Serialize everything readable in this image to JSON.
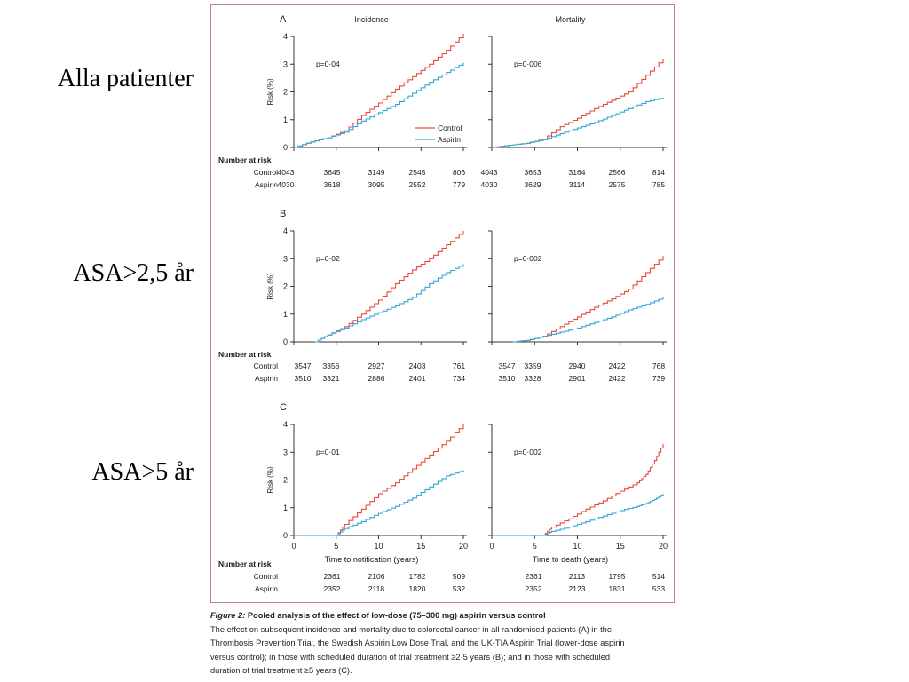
{
  "row_labels": [
    "Alla patienter",
    "ASA>2,5 år",
    "ASA>5 år"
  ],
  "caption": {
    "figure_label": "Figure 2:",
    "title": " Pooled analysis of the effect of low-dose (75–300 mg) aspirin versus control",
    "lines": [
      "The effect on subsequent incidence and mortality due to colorectal cancer in all randomised patients (A) in the",
      "Thrombosis Prevention Trial, the Swedish Aspirin Low Dose Trial, and the UK-TIA Aspirin Trial (lower-dose aspirin",
      "versus control); in those with scheduled duration of trial treatment ≥2·5 years (B); and in those with scheduled",
      "duration of trial treatment ≥5 years (C)."
    ]
  },
  "colors": {
    "control": "#e8493c",
    "aspirin": "#2fa6d6",
    "axis": "#333333",
    "frame": "#c97a8f"
  },
  "chart_data": [
    {
      "panel": "A",
      "type": "line",
      "column_title": "Incidence",
      "ylabel": "Risk (%)",
      "ylim": [
        0,
        4
      ],
      "yticks": [
        "0",
        "1",
        "2",
        "3",
        "4"
      ],
      "xlim": [
        0,
        20
      ],
      "pvalue": "p=0·04",
      "legend": [
        "Control",
        "Aspirin"
      ],
      "series": [
        {
          "name": "Control",
          "x": [
            0,
            2,
            4,
            6,
            8,
            10,
            12,
            14,
            16,
            18,
            20
          ],
          "y": [
            0,
            0.2,
            0.35,
            0.6,
            1.15,
            1.6,
            2.1,
            2.55,
            3.0,
            3.5,
            4.1
          ]
        },
        {
          "name": "Aspirin",
          "x": [
            0,
            2,
            4,
            6,
            8,
            10,
            12,
            14,
            16,
            18,
            20
          ],
          "y": [
            0,
            0.2,
            0.35,
            0.55,
            0.95,
            1.25,
            1.55,
            1.95,
            2.35,
            2.7,
            3.05
          ]
        }
      ],
      "risk_table": {
        "header": "Number at risk",
        "rows": [
          {
            "label": "Control",
            "values": [
              "4043",
              "3645",
              "3149",
              "2545",
              "806"
            ]
          },
          {
            "label": "Aspirin",
            "values": [
              "4030",
              "3618",
              "3095",
              "2552",
              "779"
            ]
          }
        ]
      }
    },
    {
      "panel": "A",
      "type": "line",
      "column_title": "Mortality",
      "ylim": [
        0,
        4
      ],
      "xlim": [
        0,
        20
      ],
      "pvalue": "p=0·006",
      "series": [
        {
          "name": "Control",
          "x": [
            0,
            2,
            4,
            6,
            8,
            10,
            12,
            14,
            16,
            18,
            20
          ],
          "y": [
            0,
            0.08,
            0.15,
            0.3,
            0.75,
            1.05,
            1.4,
            1.7,
            2.0,
            2.6,
            3.2
          ]
        },
        {
          "name": "Aspirin",
          "x": [
            0,
            2,
            4,
            6,
            8,
            10,
            12,
            14,
            16,
            18,
            20
          ],
          "y": [
            0,
            0.08,
            0.15,
            0.28,
            0.5,
            0.7,
            0.9,
            1.15,
            1.4,
            1.65,
            1.8
          ]
        }
      ],
      "risk_table": {
        "rows": [
          {
            "label": "Control",
            "values": [
              "4043",
              "3653",
              "3164",
              "2566",
              "814"
            ]
          },
          {
            "label": "Aspirin",
            "values": [
              "4030",
              "3629",
              "3114",
              "2575",
              "785"
            ]
          }
        ]
      }
    },
    {
      "panel": "B",
      "type": "line",
      "ylabel": "Risk (%)",
      "ylim": [
        0,
        4
      ],
      "yticks": [
        "0",
        "1",
        "2",
        "3",
        "4"
      ],
      "xlim": [
        0,
        20
      ],
      "pvalue": "p=0·02",
      "series": [
        {
          "name": "Control",
          "x": [
            2.5,
            4,
            6,
            8,
            10,
            12,
            14,
            16,
            18,
            20
          ],
          "y": [
            0,
            0.25,
            0.55,
            1.0,
            1.5,
            2.1,
            2.6,
            3.0,
            3.5,
            4.0
          ]
        },
        {
          "name": "Aspirin",
          "x": [
            2.5,
            4,
            6,
            8,
            10,
            12,
            14,
            16,
            18,
            20
          ],
          "y": [
            0,
            0.25,
            0.5,
            0.8,
            1.05,
            1.3,
            1.6,
            2.1,
            2.5,
            2.8
          ]
        }
      ],
      "risk_table": {
        "header": "Number at risk",
        "rows": [
          {
            "label": "Control",
            "values": [
              "3547",
              "3356",
              "2927",
              "2403",
              "761"
            ]
          },
          {
            "label": "Aspirin",
            "values": [
              "3510",
              "3321",
              "2886",
              "2401",
              "734"
            ]
          }
        ]
      }
    },
    {
      "panel": "B",
      "type": "line",
      "ylim": [
        0,
        4
      ],
      "xlim": [
        0,
        20
      ],
      "pvalue": "p=0·002",
      "series": [
        {
          "name": "Control",
          "x": [
            2.5,
            4,
            6,
            8,
            10,
            12,
            14,
            16,
            18,
            20
          ],
          "y": [
            0,
            0.05,
            0.2,
            0.55,
            0.9,
            1.25,
            1.55,
            1.9,
            2.5,
            3.1
          ]
        },
        {
          "name": "Aspirin",
          "x": [
            2.5,
            4,
            6,
            8,
            10,
            12,
            14,
            16,
            18,
            20
          ],
          "y": [
            0,
            0.05,
            0.2,
            0.35,
            0.5,
            0.7,
            0.9,
            1.15,
            1.35,
            1.6
          ]
        }
      ],
      "risk_table": {
        "rows": [
          {
            "label": "Control",
            "values": [
              "3547",
              "3359",
              "2940",
              "2422",
              "768"
            ]
          },
          {
            "label": "Aspirin",
            "values": [
              "3510",
              "3328",
              "2901",
              "2422",
              "739"
            ]
          }
        ]
      }
    },
    {
      "panel": "C",
      "type": "line",
      "ylabel": "Risk (%)",
      "xlabel": "Time to notification (years)",
      "ylim": [
        0,
        4
      ],
      "yticks": [
        "0",
        "1",
        "2",
        "3",
        "4"
      ],
      "xlim": [
        0,
        20
      ],
      "xticks": [
        "0",
        "5",
        "10",
        "15",
        "20"
      ],
      "pvalue": "p=0·01",
      "series": [
        {
          "name": "Control",
          "x": [
            0,
            5,
            6,
            8,
            10,
            12,
            14,
            16,
            18,
            20
          ],
          "y": [
            0,
            0,
            0.4,
            0.95,
            1.5,
            1.9,
            2.4,
            2.9,
            3.4,
            4.0
          ]
        },
        {
          "name": "Aspirin",
          "x": [
            0,
            5,
            6,
            8,
            10,
            12,
            14,
            16,
            18,
            20
          ],
          "y": [
            0,
            0,
            0.25,
            0.5,
            0.8,
            1.05,
            1.35,
            1.75,
            2.15,
            2.35
          ]
        }
      ],
      "risk_table": {
        "header": "Number at risk",
        "rows": [
          {
            "label": "Control",
            "values": [
              "2361",
              "2106",
              "1782",
              "509"
            ]
          },
          {
            "label": "Aspirin",
            "values": [
              "2352",
              "2118",
              "1820",
              "532"
            ]
          }
        ]
      }
    },
    {
      "panel": "C",
      "type": "line",
      "xlabel": "Time to death (years)",
      "ylim": [
        0,
        4
      ],
      "xlim": [
        0,
        20
      ],
      "xticks": [
        "0",
        "5",
        "10",
        "15",
        "20"
      ],
      "pvalue": "p=0·002",
      "series": [
        {
          "name": "Control",
          "x": [
            0,
            6,
            7,
            9,
            11,
            13,
            15,
            17,
            18,
            19,
            20
          ],
          "y": [
            0,
            0,
            0.3,
            0.6,
            0.95,
            1.25,
            1.6,
            1.9,
            2.2,
            2.7,
            3.3
          ]
        },
        {
          "name": "Aspirin",
          "x": [
            0,
            6,
            7,
            9,
            11,
            13,
            15,
            17,
            18,
            19,
            20
          ],
          "y": [
            0,
            0,
            0.15,
            0.3,
            0.5,
            0.7,
            0.9,
            1.05,
            1.15,
            1.3,
            1.5
          ]
        }
      ],
      "risk_table": {
        "rows": [
          {
            "label": "Control",
            "values": [
              "2361",
              "2113",
              "1795",
              "514"
            ]
          },
          {
            "label": "Aspirin",
            "values": [
              "2352",
              "2123",
              "1831",
              "533"
            ]
          }
        ]
      }
    }
  ]
}
